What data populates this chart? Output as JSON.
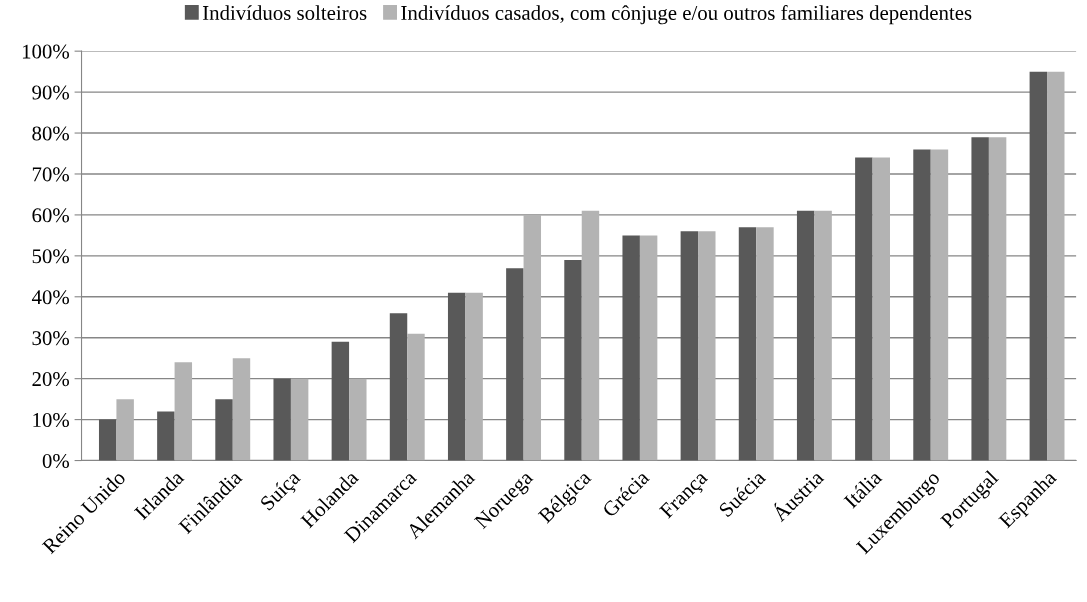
{
  "chart_data": {
    "type": "bar",
    "categories": [
      "Reino Unido",
      "Irlanda",
      "Finlândia",
      "Suíça",
      "Holanda",
      "Dinamarca",
      "Alemanha",
      "Noruega",
      "Bélgica",
      "Grécia",
      "França",
      "Suécia",
      "Áustria",
      "Itália",
      "Luxemburgo",
      "Portugal",
      "Espanha"
    ],
    "series": [
      {
        "name": "Indivíduos solteiros",
        "color": "#595959",
        "values": [
          10,
          12,
          15,
          20,
          29,
          36,
          41,
          47,
          49,
          55,
          56,
          57,
          61,
          74,
          76,
          79,
          95
        ]
      },
      {
        "name": "Indivíduos casados, com cônjuge e/ou outros familiares dependentes",
        "color": "#b3b3b3",
        "values": [
          15,
          24,
          25,
          20,
          20,
          31,
          41,
          60,
          61,
          55,
          56,
          57,
          61,
          74,
          76,
          79,
          95
        ]
      }
    ],
    "ylim": [
      0,
      100
    ],
    "yticks": [
      {
        "value": 0,
        "label": "0%"
      },
      {
        "value": 10,
        "label": "10%"
      },
      {
        "value": 20,
        "label": "20%"
      },
      {
        "value": 30,
        "label": "30%"
      },
      {
        "value": 40,
        "label": "40%"
      },
      {
        "value": 50,
        "label": "50%"
      },
      {
        "value": 60,
        "label": "60%"
      },
      {
        "value": 70,
        "label": "70%"
      },
      {
        "value": 80,
        "label": "80%"
      },
      {
        "value": 90,
        "label": "90%"
      },
      {
        "value": 100,
        "label": "100%"
      }
    ],
    "grid": "y",
    "legend": "top"
  }
}
